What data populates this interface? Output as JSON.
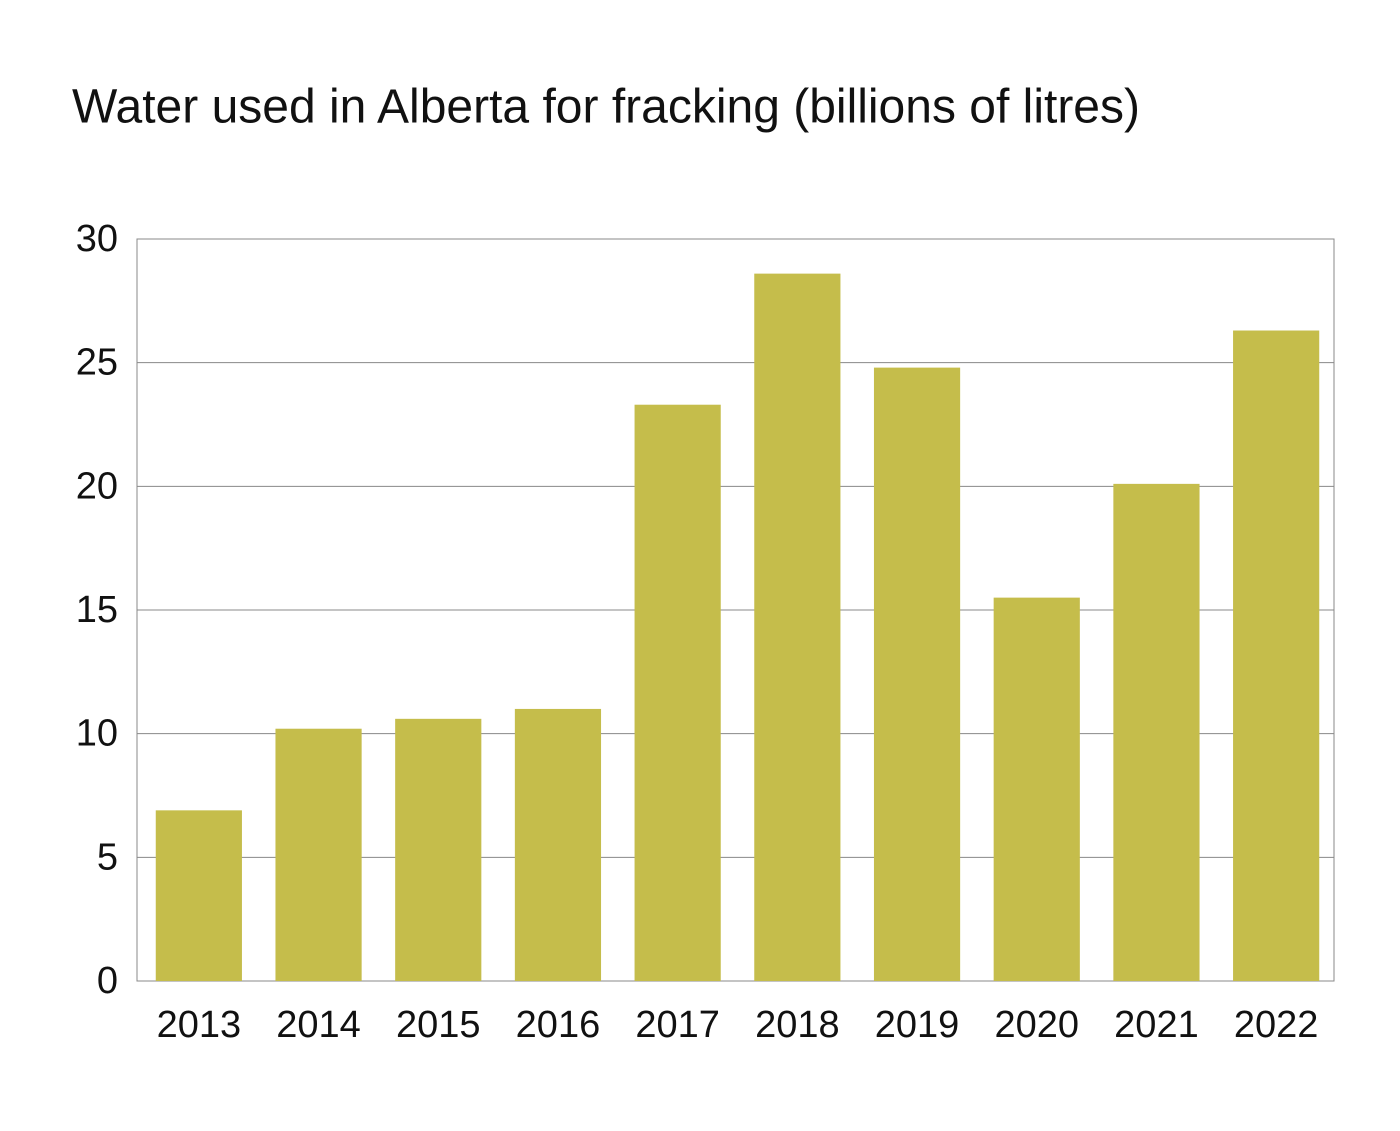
{
  "chart_data": {
    "type": "bar",
    "title": "Water used in Alberta for fracking (billions of litres)",
    "categories": [
      "2013",
      "2014",
      "2015",
      "2016",
      "2017",
      "2018",
      "2019",
      "2020",
      "2021",
      "2022"
    ],
    "values": [
      6.9,
      10.2,
      10.6,
      11.0,
      23.3,
      28.6,
      24.8,
      15.5,
      20.1,
      26.3
    ],
    "color": "#c5bd4b",
    "ylim": [
      0,
      30
    ],
    "yticks": [
      0,
      5,
      10,
      15,
      20,
      25,
      30
    ],
    "grid": true
  }
}
